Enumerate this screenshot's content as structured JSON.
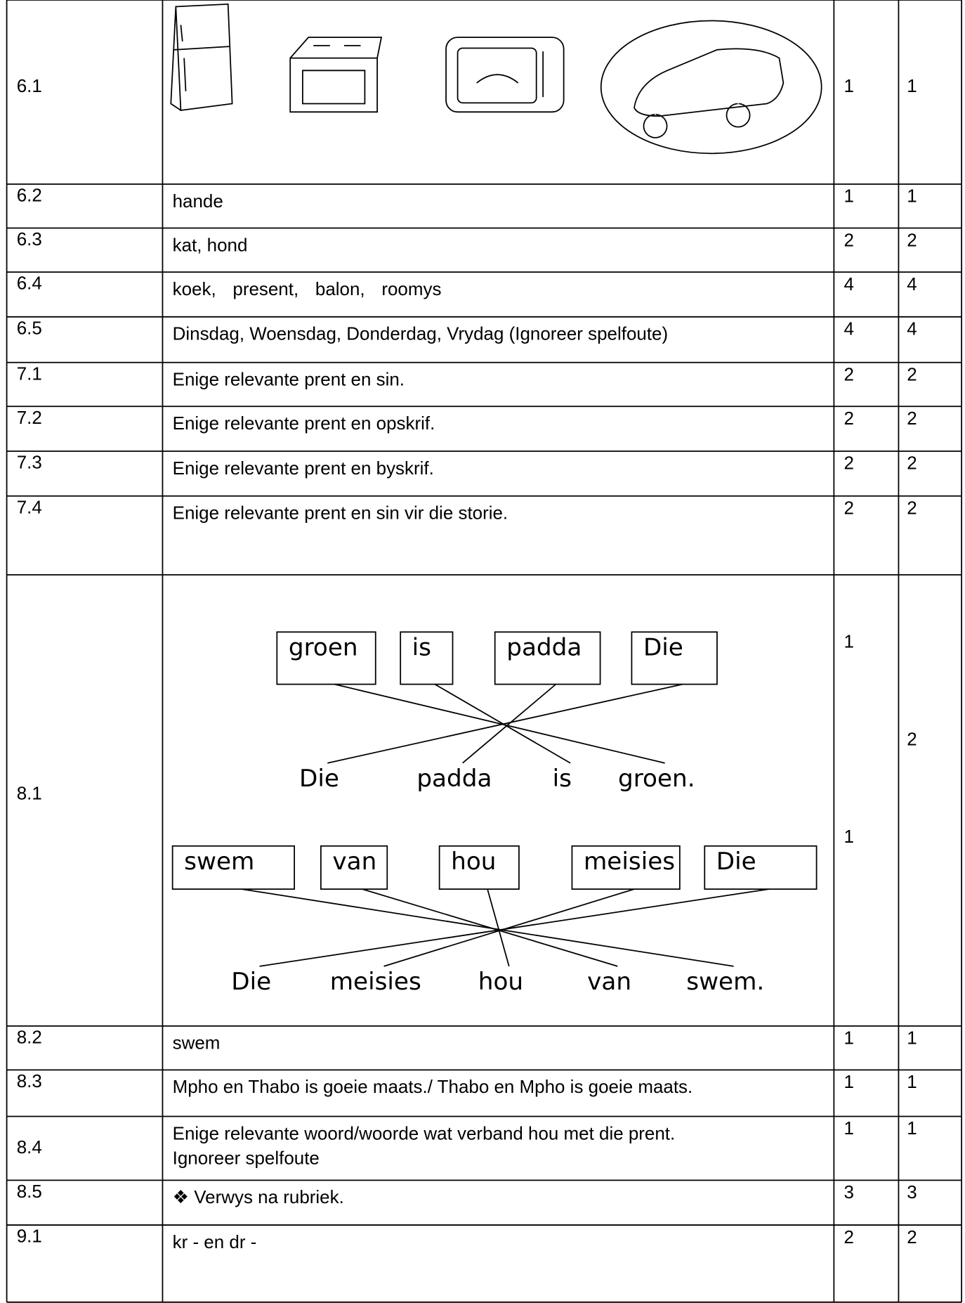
{
  "rows": [
    {
      "number": "6.1",
      "marks": [
        1
      ],
      "total": [
        1
      ]
    },
    {
      "number": "6.2",
      "answer": [
        "hande"
      ],
      "marks": [
        1
      ],
      "total": [
        1
      ]
    },
    {
      "number": "6.3",
      "answer": [
        "kat, hond"
      ],
      "marks": [
        2
      ],
      "total": [
        2
      ]
    },
    {
      "number": "6.4",
      "answer": [
        "koek, present, balon, roomys"
      ],
      "marks": [
        4
      ],
      "total": [
        4
      ]
    },
    {
      "number": "6.5",
      "answer": [
        "Dinsdag, Woensdag, Donderdag, Vrydag (Ignoreer spelfoute)"
      ],
      "marks": [
        4
      ],
      "total": [
        4
      ]
    },
    {
      "number": "7.1",
      "answer": [
        "Enige relevante prent en sin."
      ],
      "marks": [
        2
      ],
      "total": [
        2
      ]
    },
    {
      "number": "7.2",
      "answer": [
        "Enige relevante prent en opskrif."
      ],
      "marks": [
        2
      ],
      "total": [
        2
      ]
    },
    {
      "number": "7.3",
      "answer": [
        "Enige relevante prent en byskrif."
      ],
      "marks": [
        2
      ],
      "total": [
        2
      ]
    },
    {
      "number": "7.4",
      "answer": [
        "Enige relevante prent  en sin vir die storie."
      ],
      "marks": [
        2
      ],
      "total": [
        2
      ]
    },
    {
      "number": "8.1",
      "marks": [
        1,
        1
      ],
      "total": [
        2
      ]
    },
    {
      "number": "8.2",
      "answer": [
        "swem"
      ],
      "marks": [
        1
      ],
      "total": [
        1
      ]
    },
    {
      "number": "8.3",
      "answer": [
        "Mpho en Thabo is goeie maats./ Thabo en Mpho is goeie maats."
      ],
      "marks": [
        1
      ],
      "total": [
        1
      ]
    },
    {
      "number": "8.4",
      "answer": [
        "Enige relevante woord/woorde wat verband hou met die prent.",
        "Ignoreer spelfoute"
      ],
      "marks": [
        1
      ],
      "total": [
        1
      ]
    },
    {
      "number": "8.5",
      "answer": [
        "Verwys na rubriek."
      ],
      "marks": [
        3
      ],
      "total": [
        3
      ]
    },
    {
      "number": "9.1",
      "answer": [
        "kr - en dr -"
      ],
      "marks": [
        2
      ],
      "total": [
        2
      ]
    }
  ],
  "exercise_8_1": [
    {
      "boxes": [
        "groen",
        "is",
        "padda",
        "Die"
      ],
      "sentence": [
        "Die",
        "padda",
        "is",
        "groen."
      ]
    },
    {
      "boxes": [
        "swem",
        "van",
        "hou",
        "meisies",
        "Die"
      ],
      "sentence": [
        "Die",
        "meisies",
        "hou",
        "van",
        "swem."
      ]
    }
  ]
}
